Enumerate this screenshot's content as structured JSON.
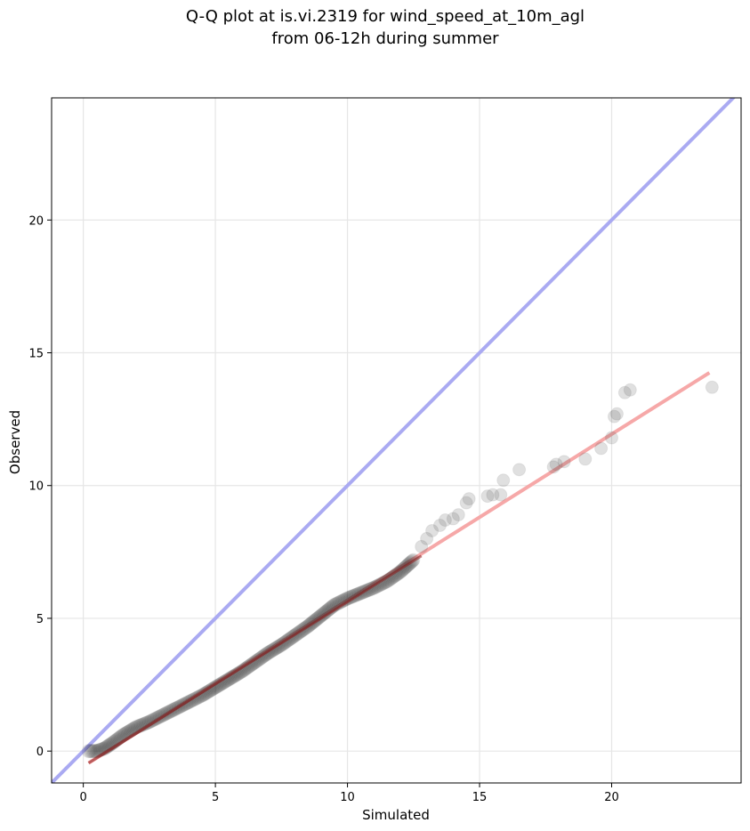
{
  "chart_data": {
    "type": "scatter",
    "title_line1": "Q-Q plot at is.vi.2319 for wind_speed_at_10m_agl",
    "title_line2": "from 06-12h during summer",
    "xlabel": "Simulated",
    "ylabel": "Observed",
    "xlim": [
      -1.2,
      24.9
    ],
    "ylim": [
      -1.2,
      24.6
    ],
    "xticks": [
      0,
      5,
      10,
      15,
      20
    ],
    "yticks": [
      0,
      5,
      10,
      15,
      20
    ],
    "grid": true,
    "reference_line": {
      "slope": 1,
      "intercept": 0,
      "color": "#aaaaf2"
    },
    "fit_line": {
      "x": [
        0.2,
        23.7
      ],
      "y": [
        -0.45,
        14.25
      ],
      "color": "#f6a8a8"
    },
    "central_fit_line": {
      "x": [
        0.2,
        12.8
      ],
      "y": [
        -0.45,
        7.35
      ],
      "color": "#8b1c1c"
    },
    "point_color": "#222222",
    "bulk_points": {
      "x": [
        0.2,
        0.5,
        0.8,
        1.1,
        1.5,
        2.0,
        2.5,
        3.0,
        3.5,
        4.0,
        4.5,
        5.0,
        5.5,
        6.0,
        6.5,
        7.0,
        7.5,
        8.0,
        8.5,
        9.0,
        9.5,
        10.0,
        10.5,
        11.0,
        11.5,
        12.0,
        12.5
      ],
      "y": [
        0.0,
        0.0,
        0.1,
        0.3,
        0.6,
        0.9,
        1.1,
        1.35,
        1.6,
        1.85,
        2.1,
        2.4,
        2.7,
        3.0,
        3.35,
        3.7,
        4.0,
        4.35,
        4.7,
        5.1,
        5.5,
        5.75,
        5.95,
        6.15,
        6.4,
        6.75,
        7.2
      ]
    },
    "tail_points": {
      "x": [
        12.8,
        13.0,
        13.2,
        13.5,
        13.7,
        14.0,
        14.2,
        14.5,
        14.6,
        15.3,
        15.5,
        15.8,
        15.9,
        16.5,
        17.8,
        17.9,
        18.2,
        19.0,
        19.6,
        20.0,
        20.1,
        20.2,
        20.5,
        20.7,
        23.8
      ],
      "y": [
        7.7,
        8.0,
        8.3,
        8.5,
        8.7,
        8.75,
        8.9,
        9.35,
        9.5,
        9.6,
        9.65,
        9.65,
        10.2,
        10.6,
        10.7,
        10.8,
        10.9,
        11.0,
        11.4,
        11.8,
        12.6,
        12.7,
        13.5,
        13.6,
        13.7
      ]
    }
  }
}
